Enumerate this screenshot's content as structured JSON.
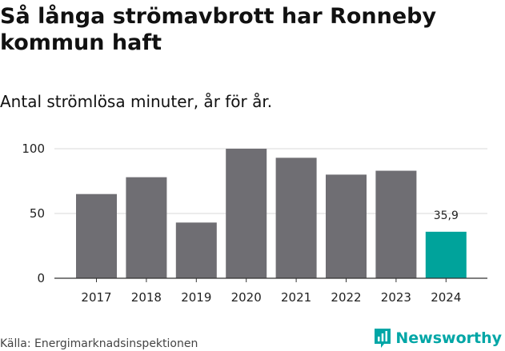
{
  "header": {
    "title": "Så långa strömavbrott har Ronneby kommun haft",
    "subtitle": "Antal strömlösa minuter, år för år."
  },
  "footer": {
    "source": "Källa: Energimarknadsinspektionen",
    "brand": "Newsworthy"
  },
  "colors": {
    "bar": "#6f6e73",
    "highlight": "#00a39b",
    "grid": "#d9d9d9",
    "axis": "#333333",
    "brand": "#00a6a6"
  },
  "chart_data": {
    "type": "bar",
    "title": "Så långa strömavbrott har Ronneby kommun haft",
    "subtitle": "Antal strömlösa minuter, år för år.",
    "xlabel": "",
    "ylabel": "",
    "categories": [
      "2017",
      "2018",
      "2019",
      "2020",
      "2021",
      "2022",
      "2023",
      "2024"
    ],
    "values": [
      65,
      78,
      43,
      100,
      93,
      80,
      83,
      35.9
    ],
    "highlight_index": 7,
    "data_labels": [
      {
        "index": 7,
        "text": "35,9"
      }
    ],
    "yticks": [
      0,
      50,
      100
    ],
    "ytick_labels": [
      "0",
      "50",
      "100"
    ],
    "ylim": [
      0,
      100
    ],
    "grid": true,
    "legend": "none"
  }
}
